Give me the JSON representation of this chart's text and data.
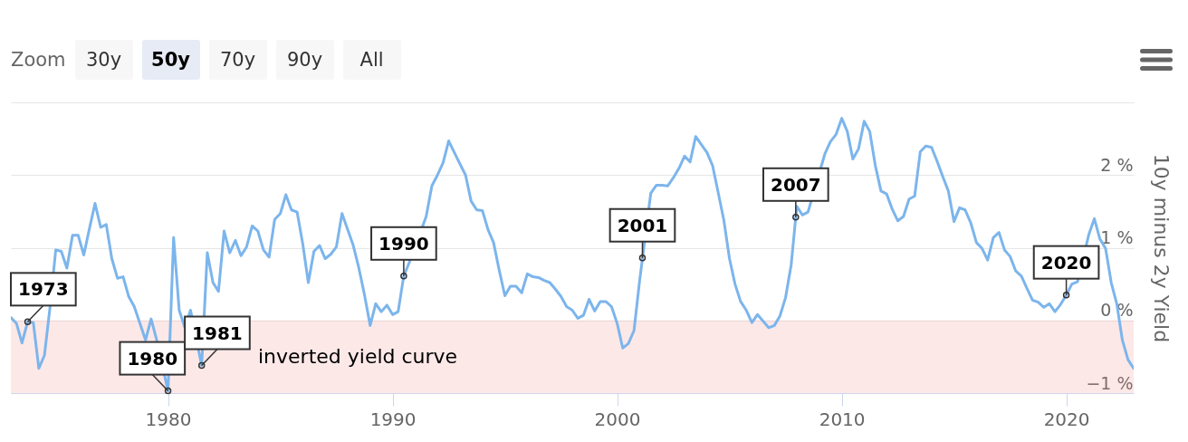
{
  "chart_data": {
    "type": "line",
    "ylabel": "10y minus 2y Yield",
    "x": [
      "1973-01",
      "1973-04",
      "1973-07",
      "1973-10",
      "1974-01",
      "1974-04",
      "1974-07",
      "1974-10",
      "1975-01",
      "1975-04",
      "1975-07",
      "1975-10",
      "1976-01",
      "1976-04",
      "1976-07",
      "1976-10",
      "1977-01",
      "1977-04",
      "1977-07",
      "1977-10",
      "1978-01",
      "1978-04",
      "1978-07",
      "1978-10",
      "1979-01",
      "1979-04",
      "1979-07",
      "1979-10",
      "1980-01",
      "1980-04",
      "1980-07",
      "1980-10",
      "1981-01",
      "1981-04",
      "1981-07",
      "1981-10",
      "1982-01",
      "1982-04",
      "1982-07",
      "1982-10",
      "1983-01",
      "1983-04",
      "1983-07",
      "1983-10",
      "1984-01",
      "1984-04",
      "1984-07",
      "1984-10",
      "1985-01",
      "1985-04",
      "1985-07",
      "1985-10",
      "1986-01",
      "1986-04",
      "1986-07",
      "1986-10",
      "1987-01",
      "1987-04",
      "1987-07",
      "1987-10",
      "1988-01",
      "1988-04",
      "1988-07",
      "1988-10",
      "1989-01",
      "1989-04",
      "1989-07",
      "1989-10",
      "1990-01",
      "1990-04",
      "1990-07",
      "1990-10",
      "1991-01",
      "1991-04",
      "1991-07",
      "1991-10",
      "1992-01",
      "1992-04",
      "1992-07",
      "1992-10",
      "1993-01",
      "1993-04",
      "1993-07",
      "1993-10",
      "1994-01",
      "1994-04",
      "1994-07",
      "1994-10",
      "1995-01",
      "1995-04",
      "1995-07",
      "1995-10",
      "1996-01",
      "1996-04",
      "1996-07",
      "1996-10",
      "1997-01",
      "1997-04",
      "1997-07",
      "1997-10",
      "1998-01",
      "1998-04",
      "1998-07",
      "1998-10",
      "1999-01",
      "1999-04",
      "1999-07",
      "1999-10",
      "2000-01",
      "2000-04",
      "2000-07",
      "2000-10",
      "2001-01",
      "2001-04",
      "2001-07",
      "2001-10",
      "2002-01",
      "2002-04",
      "2002-07",
      "2002-10",
      "2003-01",
      "2003-04",
      "2003-07",
      "2003-10",
      "2004-01",
      "2004-04",
      "2004-07",
      "2004-10",
      "2005-01",
      "2005-04",
      "2005-07",
      "2005-10",
      "2006-01",
      "2006-04",
      "2006-07",
      "2006-10",
      "2007-01",
      "2007-04",
      "2007-07",
      "2007-10",
      "2008-01",
      "2008-04",
      "2008-07",
      "2008-10",
      "2009-01",
      "2009-04",
      "2009-07",
      "2009-10",
      "2010-01",
      "2010-04",
      "2010-07",
      "2010-10",
      "2011-01",
      "2011-04",
      "2011-07",
      "2011-10",
      "2012-01",
      "2012-04",
      "2012-07",
      "2012-10",
      "2013-01",
      "2013-04",
      "2013-07",
      "2013-10",
      "2014-01",
      "2014-04",
      "2014-07",
      "2014-10",
      "2015-01",
      "2015-04",
      "2015-07",
      "2015-10",
      "2016-01",
      "2016-04",
      "2016-07",
      "2016-10",
      "2017-01",
      "2017-04",
      "2017-07",
      "2017-10",
      "2018-01",
      "2018-04",
      "2018-07",
      "2018-10",
      "2019-01",
      "2019-04",
      "2019-07",
      "2019-10",
      "2020-01",
      "2020-04",
      "2020-07",
      "2020-10",
      "2021-01",
      "2021-04",
      "2021-07",
      "2021-10",
      "2022-01",
      "2022-04",
      "2022-07",
      "2022-10",
      "2023-01"
    ],
    "series": [
      {
        "color": "#7cb5ec",
        "values": [
          0.04,
          -0.04,
          -0.31,
          -0.02,
          -0.03,
          -0.66,
          -0.48,
          0.19,
          0.97,
          0.95,
          0.72,
          1.17,
          1.17,
          0.9,
          1.26,
          1.61,
          1.28,
          1.32,
          0.85,
          0.58,
          0.6,
          0.33,
          0.19,
          null,
          -0.27,
          0.02,
          -0.27,
          null,
          -0.97,
          1.14,
          0.14,
          -0.1,
          0.14,
          null,
          -0.62,
          0.93,
          0.52,
          0.4,
          1.23,
          0.93,
          1.1,
          0.89,
          1.01,
          1.3,
          1.23,
          0.97,
          0.87,
          1.39,
          1.47,
          1.73,
          1.52,
          1.49,
          1.05,
          0.52,
          0.95,
          1.03,
          0.85,
          0.91,
          1.01,
          1.47,
          1.25,
          1.03,
          0.72,
          0.35,
          -0.07,
          0.23,
          0.12,
          0.21,
          0.08,
          0.12,
          0.61,
          0.8,
          null,
          null,
          1.43,
          1.85,
          2.0,
          2.17,
          2.47,
          2.31,
          2.15,
          2.0,
          1.64,
          1.52,
          1.51,
          1.25,
          1.07,
          0.69,
          0.34,
          0.47,
          0.47,
          0.38,
          0.64,
          0.6,
          0.59,
          0.55,
          0.52,
          0.43,
          0.33,
          0.19,
          0.14,
          0.03,
          0.07,
          0.29,
          0.13,
          0.26,
          0.26,
          0.19,
          -0.04,
          -0.38,
          -0.32,
          -0.14,
          0.55,
          null,
          1.75,
          1.86,
          1.86,
          1.85,
          1.96,
          2.09,
          2.26,
          2.18,
          2.53,
          2.42,
          2.31,
          2.13,
          1.76,
          1.38,
          0.85,
          0.5,
          0.26,
          0.14,
          -0.03,
          0.08,
          -0.01,
          -0.1,
          -0.07,
          0.06,
          0.31,
          0.76,
          1.57,
          1.45,
          1.49,
          null,
          null,
          2.29,
          2.46,
          2.56,
          2.78,
          2.6,
          2.22,
          2.36,
          2.74,
          2.6,
          2.13,
          1.78,
          1.74,
          1.53,
          1.37,
          1.43,
          1.67,
          1.71,
          2.32,
          2.4,
          2.38,
          2.19,
          1.98,
          1.78,
          1.36,
          1.55,
          1.52,
          1.34,
          1.07,
          0.99,
          0.83,
          1.14,
          1.21,
          0.97,
          0.88,
          0.68,
          0.61,
          0.44,
          0.28,
          0.25,
          0.18,
          0.23,
          0.12,
          0.22,
          0.35,
          0.5,
          0.53,
          null,
          1.18,
          1.4,
          1.12,
          0.99,
          0.52,
          0.23,
          -0.27,
          -0.54,
          -0.66
        ]
      }
    ],
    "xlim": [
      "1973-01",
      "2023-01"
    ],
    "xticks": [
      "1980",
      "1990",
      "2000",
      "2010",
      "2020"
    ],
    "ylim": [
      -1,
      3
    ],
    "yticks": [
      {
        "value": -1,
        "label": "−1 %"
      },
      {
        "value": 0,
        "label": "0 %"
      },
      {
        "value": 1,
        "label": "1 %"
      },
      {
        "value": 2,
        "label": "2 %"
      },
      {
        "value": 3,
        "label": null
      }
    ],
    "grid": "y",
    "bands": [
      {
        "axis": "y",
        "from": -1,
        "to": 0,
        "label": "inverted yield curve",
        "color": "#fde8e8"
      }
    ],
    "annotations": [
      "Zoom",
      "30y",
      "50y",
      "70y",
      "90y",
      "All",
      {
        "text": "1973",
        "x": "1973-10",
        "y": -0.02
      },
      {
        "text": "1980",
        "x": "1980-01",
        "y": -0.97
      },
      {
        "text": "1981",
        "x": "1981-07",
        "y": -0.62
      },
      {
        "text": "1990",
        "x": "1990-07",
        "y": 0.61
      },
      {
        "text": "2001",
        "x": "2001-02-15",
        "y": 0.86
      },
      {
        "text": "2007",
        "x": "2007-12-15",
        "y": 1.42
      },
      {
        "text": "2020",
        "x": "2020-01",
        "y": 0.35
      }
    ]
  }
}
